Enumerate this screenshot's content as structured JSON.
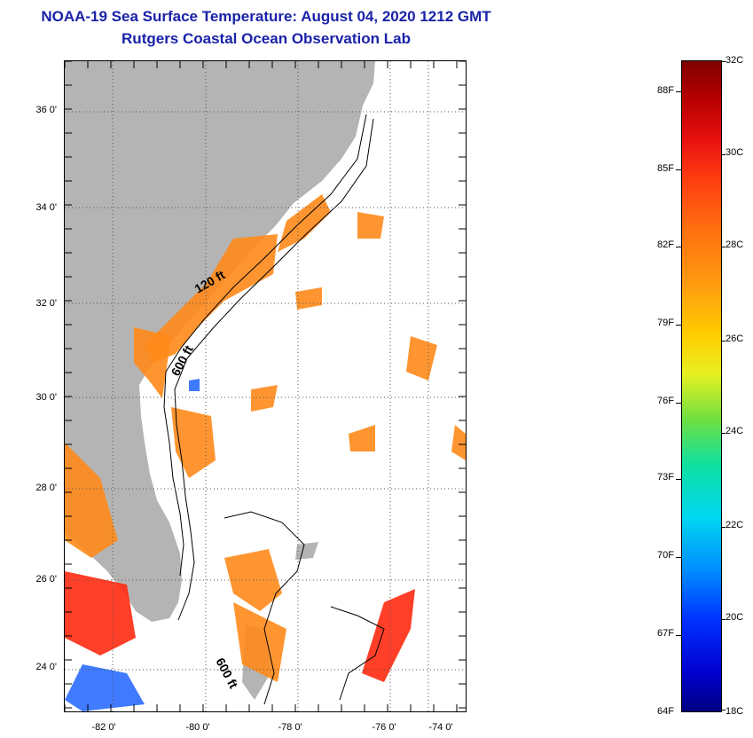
{
  "header": {
    "title": "NOAA-19 Sea Surface Temperature:  August 04, 2020 1212 GMT",
    "subtitle": "Rutgers Coastal Ocean Observation Lab"
  },
  "map": {
    "lat_labels": [
      "36 0'",
      "34 0'",
      "32 0'",
      "30 0'",
      "28 0'",
      "26 0'",
      "24 0'"
    ],
    "lon_labels": [
      "-82 0'",
      "-80 0'",
      "-78 0'",
      "-76 0'",
      "-74 0'"
    ],
    "contour_labels": [
      "120 ft",
      "600 ft",
      "600 ft"
    ],
    "colors": {
      "land": "#b4b4b4",
      "no_data": "#ffffff",
      "warm_shelf": "#ff8a1a",
      "hot": "#ff2a10",
      "cool": "#2a6cff",
      "gridline": "#555555"
    }
  },
  "colorbar": {
    "celsius": [
      "32C",
      "30C",
      "28C",
      "26C",
      "24C",
      "22C",
      "20C",
      "18C"
    ],
    "fahrenheit": [
      "88F",
      "85F",
      "82F",
      "79F",
      "76F",
      "73F",
      "70F",
      "67F",
      "64F"
    ]
  }
}
